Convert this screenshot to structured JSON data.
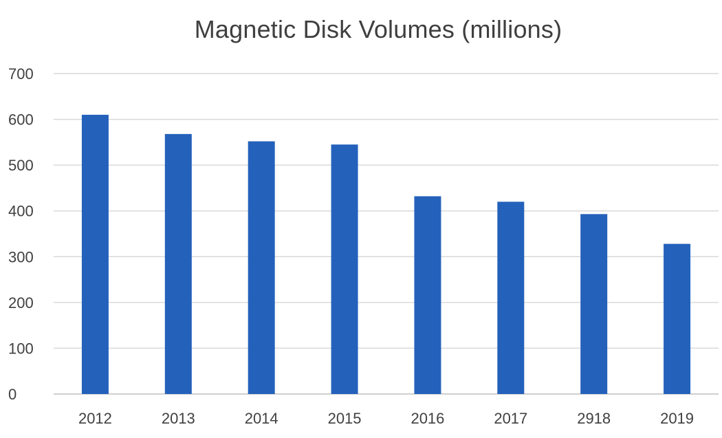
{
  "chart_data": {
    "type": "bar",
    "title": "Magnetic Disk Volumes (millions)",
    "xlabel": "",
    "ylabel": "",
    "categories": [
      "2012",
      "2013",
      "2014",
      "2015",
      "2016",
      "2017",
      "2918",
      "2019"
    ],
    "values": [
      610,
      568,
      552,
      545,
      432,
      420,
      393,
      328
    ],
    "ylim": [
      0,
      700
    ],
    "yticks": [
      "0",
      "100",
      "200",
      "300",
      "400",
      "500",
      "600",
      "700"
    ],
    "grid": true,
    "legend": "none",
    "bar_color": "#2461bb"
  }
}
